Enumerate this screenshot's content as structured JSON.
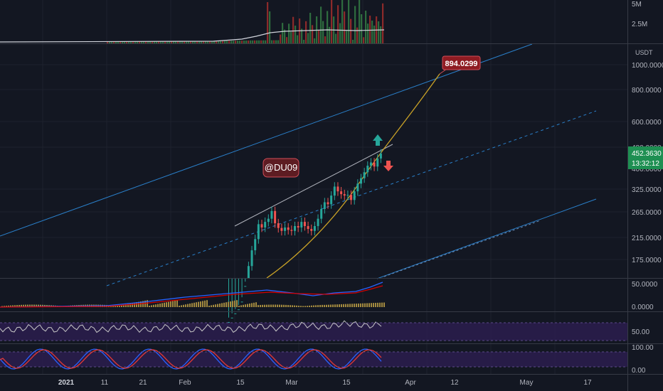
{
  "colors": {
    "background": "#131722",
    "up": "#26a69a",
    "down": "#ef5350",
    "channel": "#2a7fc9",
    "curve": "#c9a227",
    "wedge": "#b2b5be",
    "macd_line": "#2962ff",
    "signal_line": "#d50000",
    "hist": "#a38a3f",
    "rsi_line": "#c7c7c7",
    "stoch_k": "#2962ff",
    "stoch_d": "#e53935",
    "band": "#2b1d4e"
  },
  "price_axis": {
    "unit": "USDT",
    "ticks": [
      "1000.0000",
      "800.0000",
      "600.0000",
      "480.0000",
      "325.0000",
      "265.0000",
      "215.0000",
      "175.0000"
    ],
    "hidden_tick": "400.0000",
    "last_price": "452.3630",
    "countdown": "13:32:12"
  },
  "volume_axis": {
    "ticks": [
      "5M",
      "2.5M"
    ]
  },
  "macd_axis": {
    "ticks": [
      "50.0000",
      "0.0000"
    ]
  },
  "rsi_axis": {
    "ticks": [
      "50.00"
    ]
  },
  "stoch_axis": {
    "ticks": [
      "100.00",
      "0.00"
    ]
  },
  "time_axis": {
    "ticks": [
      "2021",
      "11",
      "21",
      "Feb",
      "15",
      "Mar",
      "15",
      "Apr",
      "12",
      "May",
      "17"
    ]
  },
  "annotations": {
    "target_label": "894.0299",
    "watermark": "@DU09",
    "arrow_up": "up-arrow",
    "arrow_down": "down-arrow"
  },
  "chart_data": {
    "type": "candlestick",
    "y_scale": "log",
    "candles_close": [
      100,
      104,
      108,
      112,
      120,
      138,
      165,
      190,
      210,
      240,
      233,
      245,
      252,
      270,
      242,
      232,
      226,
      233,
      228,
      226,
      236,
      233,
      245,
      236,
      230,
      226,
      236,
      252,
      275,
      292,
      287,
      310,
      336,
      322,
      314,
      310,
      312,
      298,
      322,
      345,
      362,
      382,
      405,
      417,
      402,
      432,
      452
    ],
    "target_price": 894.0299
  }
}
